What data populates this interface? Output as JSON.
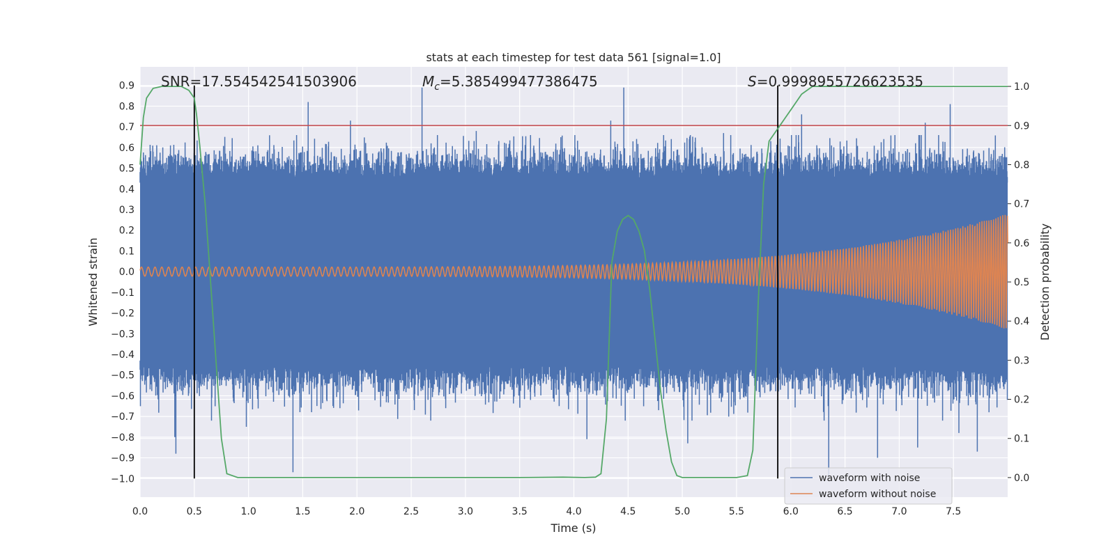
{
  "chart_data": {
    "type": "line",
    "title": "stats at each timestep for test data 561 [signal=1.0]",
    "xlabel": "Time (s)",
    "ylabel_left": "Whitened strain",
    "ylabel_right": "Detection probability",
    "xlim": [
      0.0,
      8.0
    ],
    "ylim_left": [
      -1.09,
      0.99
    ],
    "ylim_right": [
      -0.05,
      1.05
    ],
    "x_ticks": [
      0.0,
      0.5,
      1.0,
      1.5,
      2.0,
      2.5,
      3.0,
      3.5,
      4.0,
      4.5,
      5.0,
      5.5,
      6.0,
      6.5,
      7.0,
      7.5
    ],
    "x_tick_labels": [
      "0.0",
      "0.5",
      "1.0",
      "1.5",
      "2.0",
      "2.5",
      "3.0",
      "3.5",
      "4.0",
      "4.5",
      "5.0",
      "5.5",
      "6.0",
      "6.5",
      "7.0",
      "7.5"
    ],
    "y_left_ticks": [
      0.9,
      0.8,
      0.7,
      0.6,
      0.5,
      0.4,
      0.3,
      0.2,
      0.1,
      0.0,
      -0.1,
      -0.2,
      -0.3,
      -0.4,
      -0.5,
      -0.6,
      -0.7,
      -0.8,
      -0.9,
      -1.0
    ],
    "y_left_tick_labels": [
      "0.9",
      "0.8",
      "0.7",
      "0.6",
      "0.5",
      "0.4",
      "0.3",
      "0.2",
      "0.1",
      "0.0",
      "−0.1",
      "−0.2",
      "−0.3",
      "−0.4",
      "−0.5",
      "−0.6",
      "−0.7",
      "−0.8",
      "−0.9",
      "−1.0"
    ],
    "y_right_ticks": [
      1.0,
      0.9,
      0.8,
      0.7,
      0.6,
      0.5,
      0.4,
      0.3,
      0.2,
      0.1,
      0.0
    ],
    "y_right_tick_labels": [
      "1.0",
      "0.9",
      "0.8",
      "0.7",
      "0.6",
      "0.5",
      "0.4",
      "0.3",
      "0.2",
      "0.1",
      "0.0"
    ],
    "annotations": {
      "snr": "SNR=17.554542541503906",
      "mc_symbol": "M",
      "mc_sub": "c",
      "mc_value": "=5.385499477386475",
      "s_symbol": "S",
      "s_value": "=0.9998955726623535"
    },
    "threshold_line": {
      "y_right": 0.9,
      "color": "#c44e52"
    },
    "vertical_lines": [
      {
        "x": 0.5,
        "y_left_range": [
          -1.0,
          0.9
        ]
      },
      {
        "x": 5.88,
        "y_left_range": [
          -1.0,
          0.9
        ]
      }
    ],
    "series": [
      {
        "name": "waveform with noise",
        "color": "#4c72b0",
        "axis": "left",
        "envelope_upper": 0.45,
        "envelope_lower": -0.45,
        "peaks": [
          [
            0.28,
            0.61
          ],
          [
            0.5,
            0.75
          ],
          [
            1.22,
            0.57
          ],
          [
            1.55,
            0.82
          ],
          [
            1.94,
            0.73
          ],
          [
            2.6,
            0.89
          ],
          [
            3.1,
            0.68
          ],
          [
            3.88,
            0.65
          ],
          [
            4.46,
            0.89
          ],
          [
            4.34,
            0.73
          ],
          [
            5.38,
            0.67
          ],
          [
            6.1,
            0.76
          ],
          [
            7.47,
            0.81
          ],
          [
            7.24,
            0.72
          ]
        ],
        "troughs": [
          [
            0.32,
            -0.8
          ],
          [
            0.33,
            -0.88
          ],
          [
            1.41,
            -0.97
          ],
          [
            0.98,
            -0.75
          ],
          [
            4.12,
            -0.81
          ],
          [
            5.05,
            -0.83
          ],
          [
            6.35,
            -0.99
          ],
          [
            6.8,
            -0.9
          ],
          [
            7.17,
            -0.85
          ],
          [
            7.72,
            -0.87
          ],
          [
            7.55,
            -0.78
          ],
          [
            2.68,
            -0.72
          ]
        ]
      },
      {
        "name": "waveform without noise",
        "color": "#dd8452",
        "axis": "left",
        "amplitude_start": 0.022,
        "amplitude_end": 0.28
      },
      {
        "name": "detection probability",
        "color": "#55a868",
        "axis": "right",
        "x": [
          0.0,
          0.03,
          0.06,
          0.12,
          0.2,
          0.3,
          0.38,
          0.45,
          0.5,
          0.52,
          0.55,
          0.6,
          0.65,
          0.7,
          0.75,
          0.8,
          0.9,
          1.0,
          2.0,
          3.0,
          3.5,
          3.9,
          4.1,
          4.2,
          4.25,
          4.3,
          4.35,
          4.4,
          4.45,
          4.5,
          4.55,
          4.6,
          4.65,
          4.7,
          4.75,
          4.8,
          4.85,
          4.9,
          4.95,
          5.0,
          5.2,
          5.5,
          5.6,
          5.65,
          5.7,
          5.75,
          5.8,
          5.85,
          5.9,
          5.95,
          6.0,
          6.1,
          6.2,
          6.3,
          6.5,
          7.0,
          7.5,
          8.0
        ],
        "y": [
          0.8,
          0.92,
          0.97,
          0.995,
          1.0,
          1.0,
          1.0,
          0.99,
          0.97,
          0.93,
          0.85,
          0.7,
          0.5,
          0.3,
          0.1,
          0.01,
          0.0,
          0.0,
          0.0,
          0.0,
          0.0,
          0.001,
          0.0,
          0.001,
          0.01,
          0.15,
          0.55,
          0.63,
          0.66,
          0.67,
          0.66,
          0.63,
          0.58,
          0.48,
          0.35,
          0.22,
          0.12,
          0.04,
          0.005,
          0.0,
          0.0,
          0.0,
          0.005,
          0.07,
          0.45,
          0.75,
          0.86,
          0.88,
          0.9,
          0.92,
          0.94,
          0.98,
          1.0,
          1.0,
          1.0,
          1.0,
          1.0,
          1.0
        ]
      }
    ],
    "legend": {
      "location": "lower-right",
      "entries": [
        "waveform with noise",
        "waveform without noise"
      ]
    },
    "grid": true,
    "background": "#eaeaf2"
  }
}
